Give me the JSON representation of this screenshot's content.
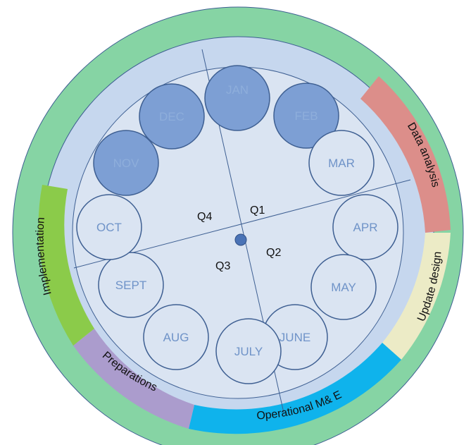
{
  "diagram": {
    "colors": {
      "outer_ring": "#86d4a4",
      "inner_band": "#c6d7ee",
      "inner_disc": "#dae4f2",
      "circle_stroke": "#3e5f92",
      "filled_month": "#7d9fd4",
      "open_month": "#dae4f2"
    },
    "months": [
      {
        "label": "JAN",
        "filled": true
      },
      {
        "label": "FEB",
        "filled": true
      },
      {
        "label": "MAR",
        "filled": false
      },
      {
        "label": "APR",
        "filled": false
      },
      {
        "label": "MAY",
        "filled": false
      },
      {
        "label": "JUNE",
        "filled": false
      },
      {
        "label": "JULY",
        "filled": false
      },
      {
        "label": "AUG",
        "filled": false
      },
      {
        "label": "SEPT",
        "filled": false
      },
      {
        "label": "OCT",
        "filled": false
      },
      {
        "label": "NOV",
        "filled": true
      },
      {
        "label": "DEC",
        "filled": true
      }
    ],
    "quarters": [
      "Q1",
      "Q2",
      "Q3",
      "Q4"
    ],
    "phases": [
      {
        "label": "Data analysis",
        "color": "#dc8e8a"
      },
      {
        "label": "Update design",
        "color": "#ecebc6"
      },
      {
        "label": "Operational M& E",
        "color": "#0fb3ec"
      },
      {
        "label": "Preparations",
        "color": "#ab9ccd"
      },
      {
        "label": "Implementation",
        "color": "#8bcb4a"
      }
    ]
  }
}
